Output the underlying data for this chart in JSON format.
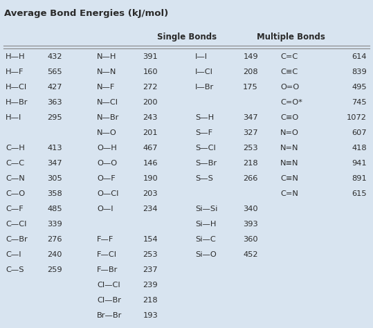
{
  "title": "Average Bond Energies (kJ/mol)",
  "title_bg": "#ffffc8",
  "fig_bg": "#d8e4f0",
  "single_bonds_label": "Single Bonds",
  "multiple_bonds_label": "Multiple Bonds",
  "col1": [
    [
      "H—H",
      "432"
    ],
    [
      "H—F",
      "565"
    ],
    [
      "H—Cl",
      "427"
    ],
    [
      "H—Br",
      "363"
    ],
    [
      "H—I",
      "295"
    ],
    [
      "",
      ""
    ],
    [
      "C—H",
      "413"
    ],
    [
      "C—C",
      "347"
    ],
    [
      "C—N",
      "305"
    ],
    [
      "C—O",
      "358"
    ],
    [
      "C—F",
      "485"
    ],
    [
      "C—Cl",
      "339"
    ],
    [
      "C—Br",
      "276"
    ],
    [
      "C—I",
      "240"
    ],
    [
      "C—S",
      "259"
    ]
  ],
  "col2": [
    [
      "N—H",
      "391"
    ],
    [
      "N—N",
      "160"
    ],
    [
      "N—F",
      "272"
    ],
    [
      "N—Cl",
      "200"
    ],
    [
      "N—Br",
      "243"
    ],
    [
      "N—O",
      "201"
    ],
    [
      "O—H",
      "467"
    ],
    [
      "O—O",
      "146"
    ],
    [
      "O—F",
      "190"
    ],
    [
      "O—Cl",
      "203"
    ],
    [
      "O—I",
      "234"
    ],
    [
      "",
      ""
    ],
    [
      "F—F",
      "154"
    ],
    [
      "F—Cl",
      "253"
    ],
    [
      "F—Br",
      "237"
    ],
    [
      "Cl—Cl",
      "239"
    ],
    [
      "Cl—Br",
      "218"
    ],
    [
      "Br—Br",
      "193"
    ]
  ],
  "col3": [
    [
      "I—I",
      "149"
    ],
    [
      "I—Cl",
      "208"
    ],
    [
      "I—Br",
      "175"
    ],
    [
      "",
      ""
    ],
    [
      "S—H",
      "347"
    ],
    [
      "S—F",
      "327"
    ],
    [
      "S—Cl",
      "253"
    ],
    [
      "S—Br",
      "218"
    ],
    [
      "S—S",
      "266"
    ],
    [
      "",
      ""
    ],
    [
      "Si—Si",
      "340"
    ],
    [
      "Si—H",
      "393"
    ],
    [
      "Si—C",
      "360"
    ],
    [
      "Si—O",
      "452"
    ]
  ],
  "col4": [
    [
      "C=C",
      "614"
    ],
    [
      "C≡C",
      "839"
    ],
    [
      "O=O",
      "495"
    ],
    [
      "C=O*",
      "745"
    ],
    [
      "C≡O",
      "1072"
    ],
    [
      "N=O",
      "607"
    ],
    [
      "N=N",
      "418"
    ],
    [
      "N≡N",
      "941"
    ],
    [
      "C≡N",
      "891"
    ],
    [
      "C=N",
      "615"
    ]
  ],
  "font_size": 8.2,
  "header_font_size": 8.5,
  "title_font_size": 9.5,
  "text_color": "#2a2a2a",
  "line_color": "#888888"
}
